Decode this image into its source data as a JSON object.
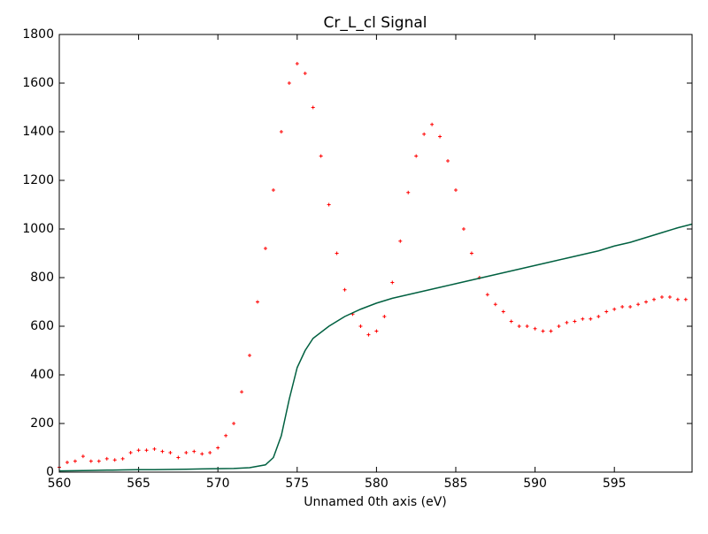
{
  "chart_data": {
    "type": "line",
    "title": "Cr_L_cl Signal",
    "xlabel": "Unnamed 0th axis (eV)",
    "xlim": [
      560,
      599.9
    ],
    "ylim": [
      0,
      1800
    ],
    "xticks": [
      560,
      565,
      570,
      575,
      580,
      585,
      590,
      595
    ],
    "yticks": [
      0,
      200,
      400,
      600,
      800,
      1000,
      1200,
      1400,
      1600,
      1800
    ],
    "series": [
      {
        "color": "#ff0000",
        "style": "markers",
        "x": [
          560,
          560.5,
          561,
          561.5,
          562,
          562.5,
          563,
          563.5,
          564,
          564.5,
          565,
          565.5,
          566,
          566.5,
          567,
          567.5,
          568,
          568.5,
          569,
          569.5,
          570,
          570.5,
          571,
          571.5,
          572,
          572.5,
          573,
          573.5,
          574,
          574.5,
          575,
          575.5,
          576,
          576.5,
          577,
          577.5,
          578,
          578.5,
          579,
          579.5,
          580,
          580.5,
          581,
          581.5,
          582,
          582.5,
          583,
          583.5,
          584,
          584.5,
          585,
          585.5,
          586,
          586.5,
          587,
          587.5,
          588,
          588.5,
          589,
          589.5,
          590,
          590.5,
          591,
          591.5,
          592,
          592.5,
          593,
          593.5,
          594,
          594.5,
          595,
          595.5,
          596,
          596.5,
          597,
          597.5,
          598,
          598.5,
          599,
          599.5
        ],
        "values": [
          20,
          40,
          45,
          65,
          45,
          45,
          55,
          50,
          55,
          80,
          90,
          90,
          95,
          85,
          80,
          60,
          80,
          85,
          75,
          80,
          100,
          150,
          200,
          330,
          480,
          700,
          920,
          1160,
          1400,
          1600,
          1680,
          1640,
          1500,
          1300,
          1100,
          900,
          750,
          650,
          600,
          565,
          580,
          640,
          780,
          950,
          1150,
          1300,
          1390,
          1430,
          1380,
          1280,
          1160,
          1000,
          900,
          800,
          730,
          690,
          660,
          620,
          600,
          600,
          590,
          580,
          580,
          600,
          615,
          620,
          630,
          630,
          640,
          660,
          670,
          680,
          680,
          690,
          700,
          710,
          720,
          720,
          710,
          710
        ]
      },
      {
        "color": "#006040",
        "style": "line",
        "x": [
          560,
          561,
          562,
          563,
          564,
          565,
          566,
          567,
          568,
          569,
          570,
          571,
          572,
          573,
          573.5,
          574,
          574.5,
          575,
          575.5,
          576,
          577,
          578,
          579,
          580,
          581,
          582,
          583,
          584,
          585,
          586,
          587,
          588,
          589,
          590,
          591,
          592,
          593,
          594,
          595,
          596,
          597,
          598,
          599,
          599.9
        ],
        "values": [
          5,
          6,
          7,
          8,
          9,
          10,
          10,
          11,
          12,
          13,
          14,
          15,
          18,
          30,
          60,
          150,
          300,
          430,
          500,
          550,
          600,
          640,
          670,
          695,
          715,
          730,
          745,
          760,
          775,
          790,
          805,
          820,
          835,
          850,
          865,
          880,
          895,
          910,
          930,
          945,
          965,
          985,
          1005,
          1020
        ]
      }
    ]
  }
}
